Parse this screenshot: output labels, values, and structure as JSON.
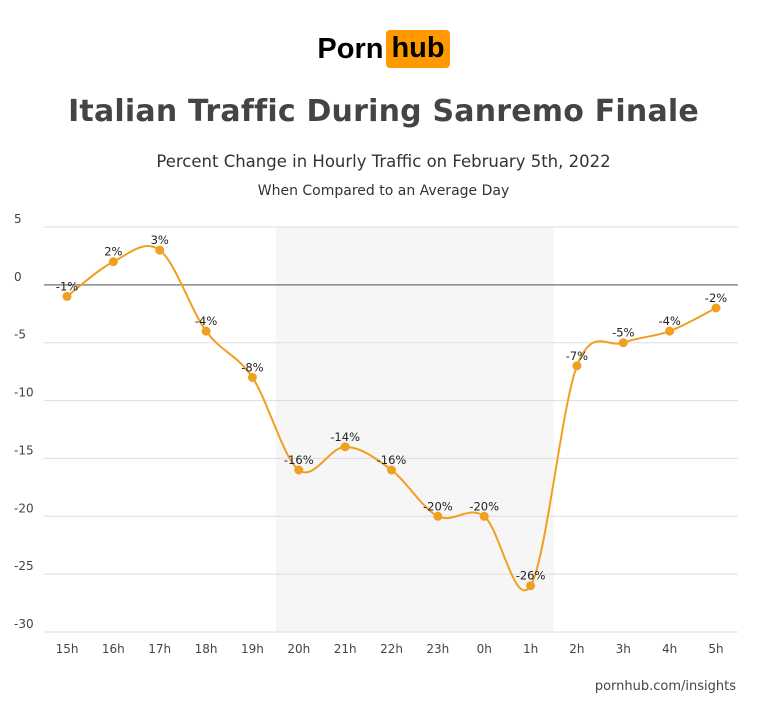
{
  "brand": {
    "part1": "Porn",
    "part2": "hub",
    "accent": "#ff9900"
  },
  "footer": "pornhub.com/insights",
  "chart_data": {
    "type": "line",
    "title": "Italian Traffic During Sanremo Finale",
    "subtitle": "Percent Change in Hourly Traffic on February 5th, 2022",
    "subsubtitle": "When Compared to an Average Day",
    "categories": [
      "15h",
      "16h",
      "17h",
      "18h",
      "19h",
      "20h",
      "21h",
      "22h",
      "23h",
      "0h",
      "1h",
      "2h",
      "3h",
      "4h",
      "5h"
    ],
    "series": [
      {
        "values": [
          -1,
          2,
          3,
          -4,
          -8,
          -16,
          -14,
          -16,
          -20,
          -20,
          -26,
          -7,
          -5,
          -4,
          -2
        ],
        "labels": [
          "-1%",
          "2%",
          "3%",
          "-4%",
          "-8%",
          "-16%",
          "-14%",
          "-16%",
          "-20%",
          "-20%",
          "-26%",
          "-7%",
          "-5%",
          "-4%",
          "-2%"
        ],
        "color": "#f0a020"
      }
    ],
    "ylim": [
      -30,
      5
    ],
    "yticks": [
      "5",
      "0",
      "-5",
      "-10",
      "-15",
      "-20",
      "-25",
      "-30"
    ],
    "ytick_values": [
      5,
      0,
      -5,
      -10,
      -15,
      -20,
      -25,
      -30
    ],
    "highlight_range": [
      "20h",
      "1h"
    ],
    "highlight_color": "#f6f6f6",
    "grid": true,
    "xlabel": "",
    "ylabel": ""
  }
}
